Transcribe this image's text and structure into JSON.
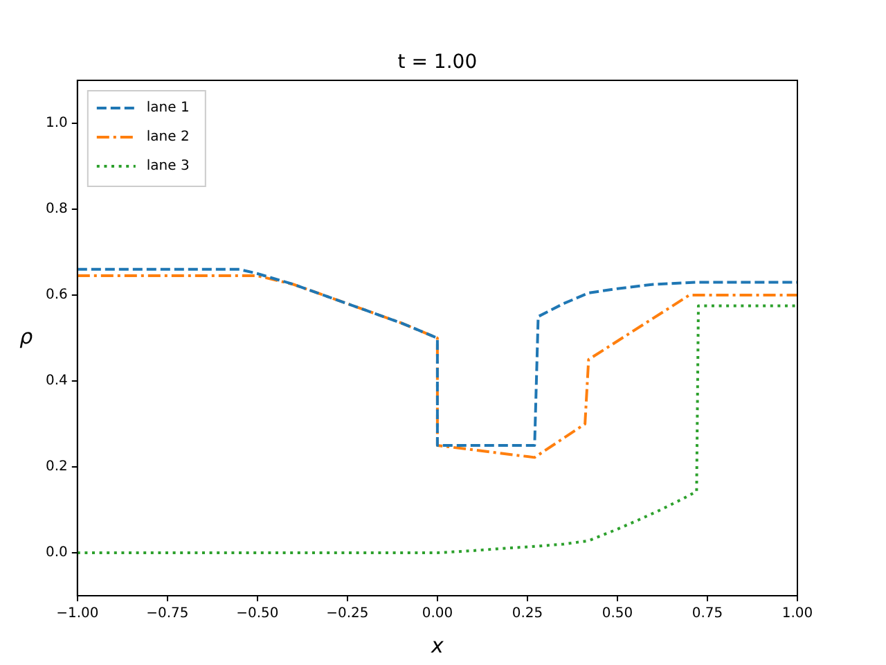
{
  "chart_data": {
    "type": "line",
    "title": "t = 1.00",
    "xlabel": "x",
    "ylabel": "ρ",
    "xlim": [
      -1,
      1
    ],
    "xticks": [
      {
        "value": -1,
        "label": "−1.00"
      },
      {
        "value": -0.75,
        "label": "−0.75"
      },
      {
        "value": -0.5,
        "label": "−0.50"
      },
      {
        "value": -0.25,
        "label": "−0.25"
      },
      {
        "value": 0,
        "label": "0.00"
      },
      {
        "value": 0.25,
        "label": "0.25"
      },
      {
        "value": 0.5,
        "label": "0.50"
      },
      {
        "value": 0.75,
        "label": "0.75"
      },
      {
        "value": 1,
        "label": "1.00"
      }
    ],
    "ylim": [
      -0.1,
      1.1
    ],
    "yticks": [
      {
        "value": 0,
        "label": "0.0"
      },
      {
        "value": 0.2,
        "label": "0.2"
      },
      {
        "value": 0.4,
        "label": "0.4"
      },
      {
        "value": 0.6,
        "label": "0.6"
      },
      {
        "value": 0.8,
        "label": "0.8"
      },
      {
        "value": 1,
        "label": "1.0"
      }
    ],
    "grid": false,
    "legend": "top left",
    "marker": "none",
    "series": [
      {
        "name": "lane 1",
        "color": "#1f77b4",
        "line_style": "dashed",
        "x": [
          -1,
          -0.55,
          -0.5,
          -0.4,
          -0.3,
          -0.2,
          -0.1,
          0,
          0,
          0.27,
          0.28,
          0.35,
          0.42,
          0.5,
          0.6,
          0.72,
          1
        ],
        "values": [
          0.66,
          0.66,
          0.65,
          0.625,
          0.595,
          0.565,
          0.535,
          0.5,
          0.25,
          0.25,
          0.55,
          0.58,
          0.605,
          0.615,
          0.625,
          0.63,
          0.63
        ]
      },
      {
        "name": "lane 2",
        "color": "#ff7f0e",
        "line_style": "dashdot",
        "x": [
          -1,
          -0.5,
          -0.4,
          -0.3,
          -0.2,
          -0.1,
          0,
          0,
          0.27,
          0.41,
          0.42,
          0.7,
          1
        ],
        "values": [
          0.645,
          0.645,
          0.625,
          0.595,
          0.565,
          0.535,
          0.5,
          0.25,
          0.222,
          0.3,
          0.45,
          0.6,
          0.6
        ]
      },
      {
        "name": "lane 3",
        "color": "#2ca02c",
        "line_style": "dotted",
        "x": [
          -1,
          0,
          0.1,
          0.2,
          0.27,
          0.35,
          0.42,
          0.5,
          0.56,
          0.62,
          0.68,
          0.72,
          0.725,
          1
        ],
        "values": [
          0,
          0,
          0.005,
          0.011,
          0.015,
          0.02,
          0.028,
          0.055,
          0.077,
          0.1,
          0.125,
          0.143,
          0.575,
          0.575
        ]
      }
    ]
  }
}
